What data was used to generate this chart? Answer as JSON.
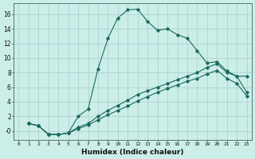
{
  "title": "",
  "xlabel": "Humidex (Indice chaleur)",
  "bg_color": "#cceee8",
  "grid_color": "#aacccc",
  "line_color": "#1a6b5a",
  "xlim": [
    -0.5,
    23.5
  ],
  "ylim": [
    -1.2,
    17.5
  ],
  "xticks": [
    0,
    1,
    2,
    3,
    4,
    5,
    6,
    7,
    8,
    9,
    10,
    11,
    12,
    13,
    14,
    15,
    16,
    17,
    18,
    19,
    20,
    21,
    22,
    23
  ],
  "yticks": [
    0,
    2,
    4,
    6,
    8,
    10,
    12,
    14,
    16
  ],
  "ytick_labels": [
    "-0",
    "2",
    "4",
    "6",
    "8",
    "10",
    "12",
    "14",
    "16"
  ],
  "series1_x": [
    1,
    2,
    3,
    4,
    5,
    6,
    7,
    8,
    9,
    10,
    11,
    12,
    13,
    14,
    15,
    16,
    17,
    18,
    19,
    20,
    21,
    22,
    23
  ],
  "series1_y": [
    1.0,
    0.7,
    -0.5,
    -0.5,
    -0.3,
    2.0,
    3.0,
    8.5,
    12.7,
    15.5,
    16.6,
    16.7,
    15.0,
    13.8,
    14.0,
    13.2,
    12.7,
    11.0,
    9.3,
    9.5,
    8.2,
    7.5,
    7.5
  ],
  "series2_x": [
    1,
    2,
    3,
    4,
    5,
    6,
    7,
    8,
    9,
    10,
    11,
    12,
    13,
    14,
    15,
    16,
    17,
    18,
    19,
    20,
    21,
    22,
    23
  ],
  "series2_y": [
    1.0,
    0.7,
    -0.5,
    -0.5,
    -0.3,
    0.5,
    1.0,
    2.0,
    2.8,
    3.5,
    4.2,
    5.0,
    5.5,
    6.0,
    6.5,
    7.0,
    7.5,
    8.0,
    8.7,
    9.2,
    8.0,
    7.5,
    5.3
  ],
  "series3_x": [
    1,
    2,
    3,
    4,
    5,
    6,
    7,
    8,
    9,
    10,
    11,
    12,
    13,
    14,
    15,
    16,
    17,
    18,
    19,
    20,
    21,
    22,
    23
  ],
  "series3_y": [
    1.0,
    0.7,
    -0.5,
    -0.5,
    -0.3,
    0.3,
    0.8,
    1.5,
    2.2,
    2.8,
    3.4,
    4.1,
    4.7,
    5.3,
    5.8,
    6.3,
    6.8,
    7.2,
    7.8,
    8.3,
    7.2,
    6.5,
    4.8
  ]
}
